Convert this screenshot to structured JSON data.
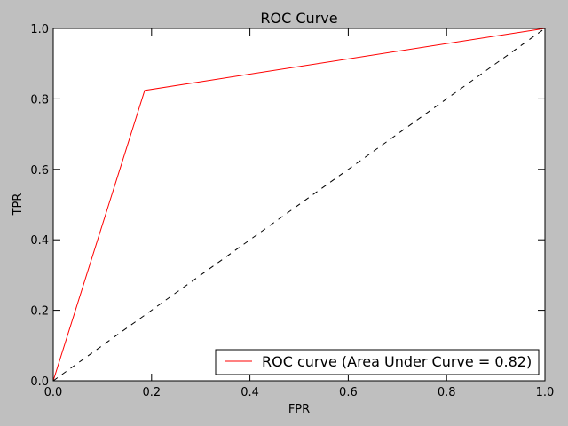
{
  "chart_data": {
    "type": "line",
    "title": "ROC Curve",
    "xlabel": "FPR",
    "ylabel": "TPR",
    "xlim": [
      0.0,
      1.0
    ],
    "ylim": [
      0.0,
      1.0
    ],
    "xticks": [
      0.0,
      0.2,
      0.4,
      0.6,
      0.8,
      1.0
    ],
    "yticks": [
      0.0,
      0.2,
      0.4,
      0.6,
      0.8,
      1.0
    ],
    "xtick_labels": [
      "0.0",
      "0.2",
      "0.4",
      "0.6",
      "0.8",
      "1.0"
    ],
    "ytick_labels": [
      "0.0",
      "0.2",
      "0.4",
      "0.6",
      "0.8",
      "1.0"
    ],
    "grid": false,
    "legend_position": "lower-right",
    "series": [
      {
        "name": "ROC curve (Area Under Curve = 0.82)",
        "color": "#ff0000",
        "style": "solid",
        "x": [
          0.0,
          0.186,
          1.0
        ],
        "y": [
          0.0,
          0.824,
          1.0
        ]
      },
      {
        "color": "#000000",
        "style": "dashed",
        "x": [
          0.0,
          1.0
        ],
        "y": [
          0.0,
          1.0
        ]
      }
    ]
  }
}
